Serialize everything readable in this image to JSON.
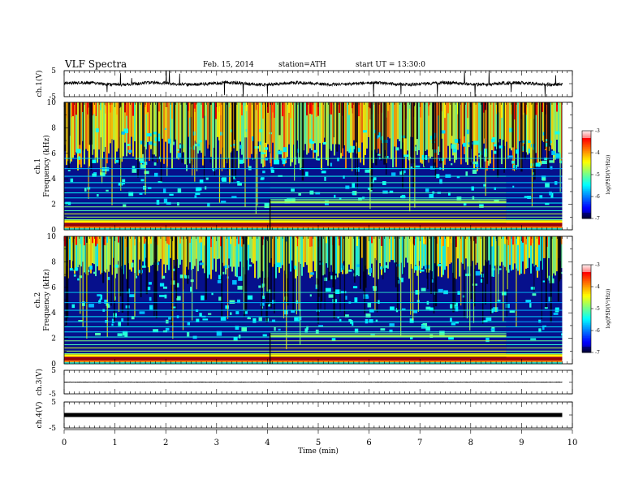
{
  "header": {
    "title": "VLF Spectra",
    "date": "Feb. 15, 2014",
    "station": "station=ATH",
    "start": "start UT =  13:30:0"
  },
  "chart_data": [
    {
      "type": "line",
      "ylabel": "ch.1(V)",
      "ylim": [
        -5,
        5
      ],
      "yticks": [
        "5",
        "-5"
      ],
      "baseline": 0,
      "noise": "bursty"
    },
    {
      "type": "heatmap",
      "ylabel": "ch.1",
      "ylabel2": "Frequency (kHz)",
      "ylim": [
        0,
        10
      ],
      "yticks": [
        "0",
        "2",
        "4",
        "6",
        "8",
        "10"
      ],
      "change_times": [
        4.05,
        8.7
      ],
      "colorbar": {
        "label": "log(PSD(V²/Hz))",
        "range": [
          -7,
          -3
        ],
        "ticks": [
          "-3",
          "-4",
          "-5",
          "-6",
          "-7"
        ]
      }
    },
    {
      "type": "heatmap",
      "ylabel": "ch.2",
      "ylabel2": "Frequency (kHz)",
      "ylim": [
        0,
        10
      ],
      "yticks": [
        "0",
        "2",
        "4",
        "6",
        "8",
        "10"
      ],
      "change_times": [
        4.05,
        8.7
      ],
      "colorbar": {
        "label": "log(PSD(V²/Hz))",
        "range": [
          -7,
          -3
        ],
        "ticks": [
          "-3",
          "-4",
          "-5",
          "-6",
          "-7"
        ]
      }
    },
    {
      "type": "line",
      "ylabel": "ch.3(V)",
      "ylim": [
        -5,
        5
      ],
      "yticks": [
        "5",
        "-5"
      ],
      "baseline": 0,
      "noise": "quiet"
    },
    {
      "type": "line",
      "ylabel": "ch.4(V)",
      "ylim": [
        -5,
        5
      ],
      "yticks": [
        "5",
        "-5"
      ],
      "baseline": 0,
      "noise": "thick"
    }
  ],
  "x_axis": {
    "xlabel": "Time (min)",
    "xlim": [
      0,
      10
    ],
    "data_end": 9.8,
    "ticks": [
      "0",
      "1",
      "2",
      "3",
      "4",
      "5",
      "6",
      "7",
      "8",
      "9",
      "10"
    ]
  }
}
